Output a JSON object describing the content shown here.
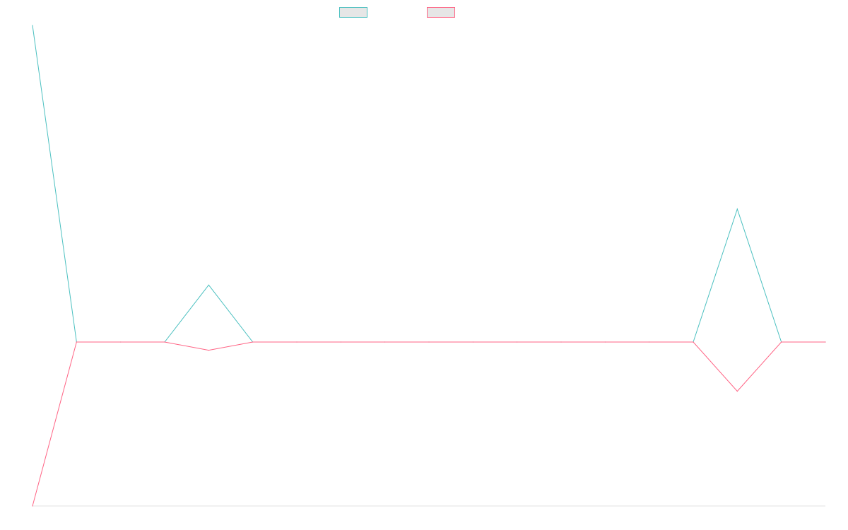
{
  "chart_data": {
    "type": "line",
    "title": "",
    "xlabel": "",
    "ylabel": "",
    "grid": false,
    "legend_position": "top",
    "x_count": 19,
    "ylim": [
      -100,
      100
    ],
    "series": [
      {
        "name": "",
        "color": "#4bc0c0",
        "values": [
          100,
          0,
          0,
          0,
          18,
          0,
          0,
          0,
          0,
          0,
          0,
          0,
          0,
          0,
          0,
          0,
          42,
          0,
          0
        ]
      },
      {
        "name": "",
        "color": "#ff6384",
        "values": [
          -100,
          0,
          0,
          0,
          -5,
          0,
          0,
          0,
          0,
          0,
          0,
          0,
          0,
          0,
          0,
          0,
          -30,
          0,
          0
        ]
      }
    ]
  }
}
